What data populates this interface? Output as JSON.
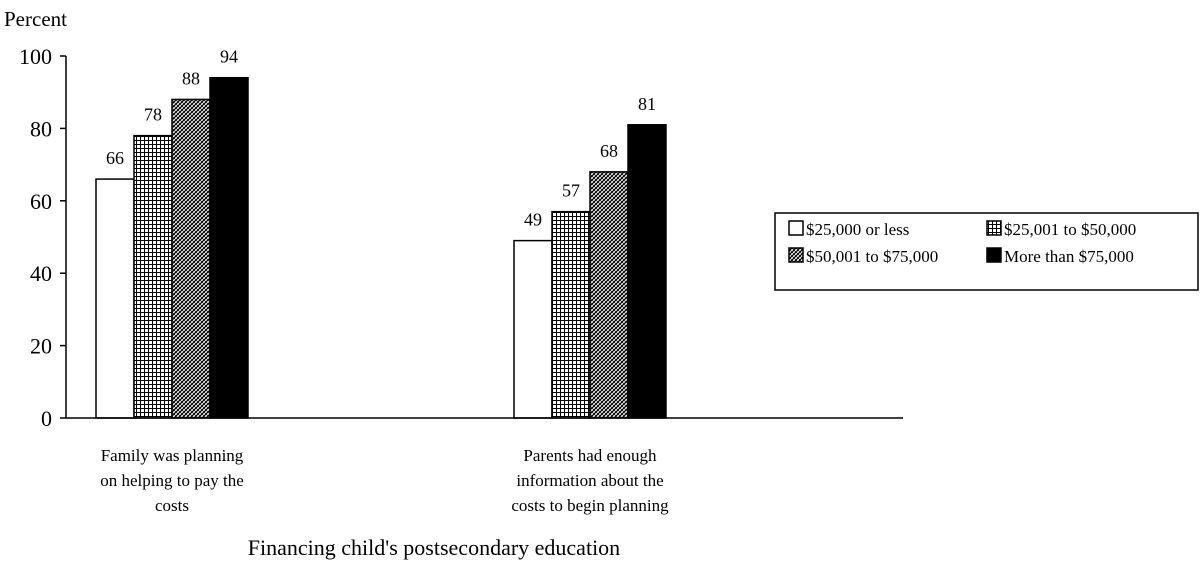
{
  "chart_data": {
    "type": "bar",
    "ylabel": "Percent",
    "xlabel": "Financing child's postsecondary education",
    "ylim": [
      0,
      100
    ],
    "yticks": [
      "0",
      "20",
      "40",
      "60",
      "80",
      "100"
    ],
    "categories": [
      [
        "Family was planning",
        "on helping to pay the",
        "costs"
      ],
      [
        "Parents had enough",
        "information about the",
        "costs to begin planning"
      ]
    ],
    "series": [
      {
        "name": "$25,000 or less",
        "values": [
          66,
          49
        ],
        "fill": "white"
      },
      {
        "name": "$25,001 to $50,000",
        "values": [
          78,
          57
        ],
        "fill": "grid"
      },
      {
        "name": "$50,001 to $75,000",
        "values": [
          88,
          68
        ],
        "fill": "diagonal"
      },
      {
        "name": "More than $75,000",
        "values": [
          94,
          81
        ],
        "fill": "black"
      }
    ],
    "data_labels": [
      [
        "66",
        "49"
      ],
      [
        "78",
        "57"
      ],
      [
        "88",
        "68"
      ],
      [
        "94",
        "81"
      ]
    ],
    "legend_position": "right",
    "grid": false
  }
}
